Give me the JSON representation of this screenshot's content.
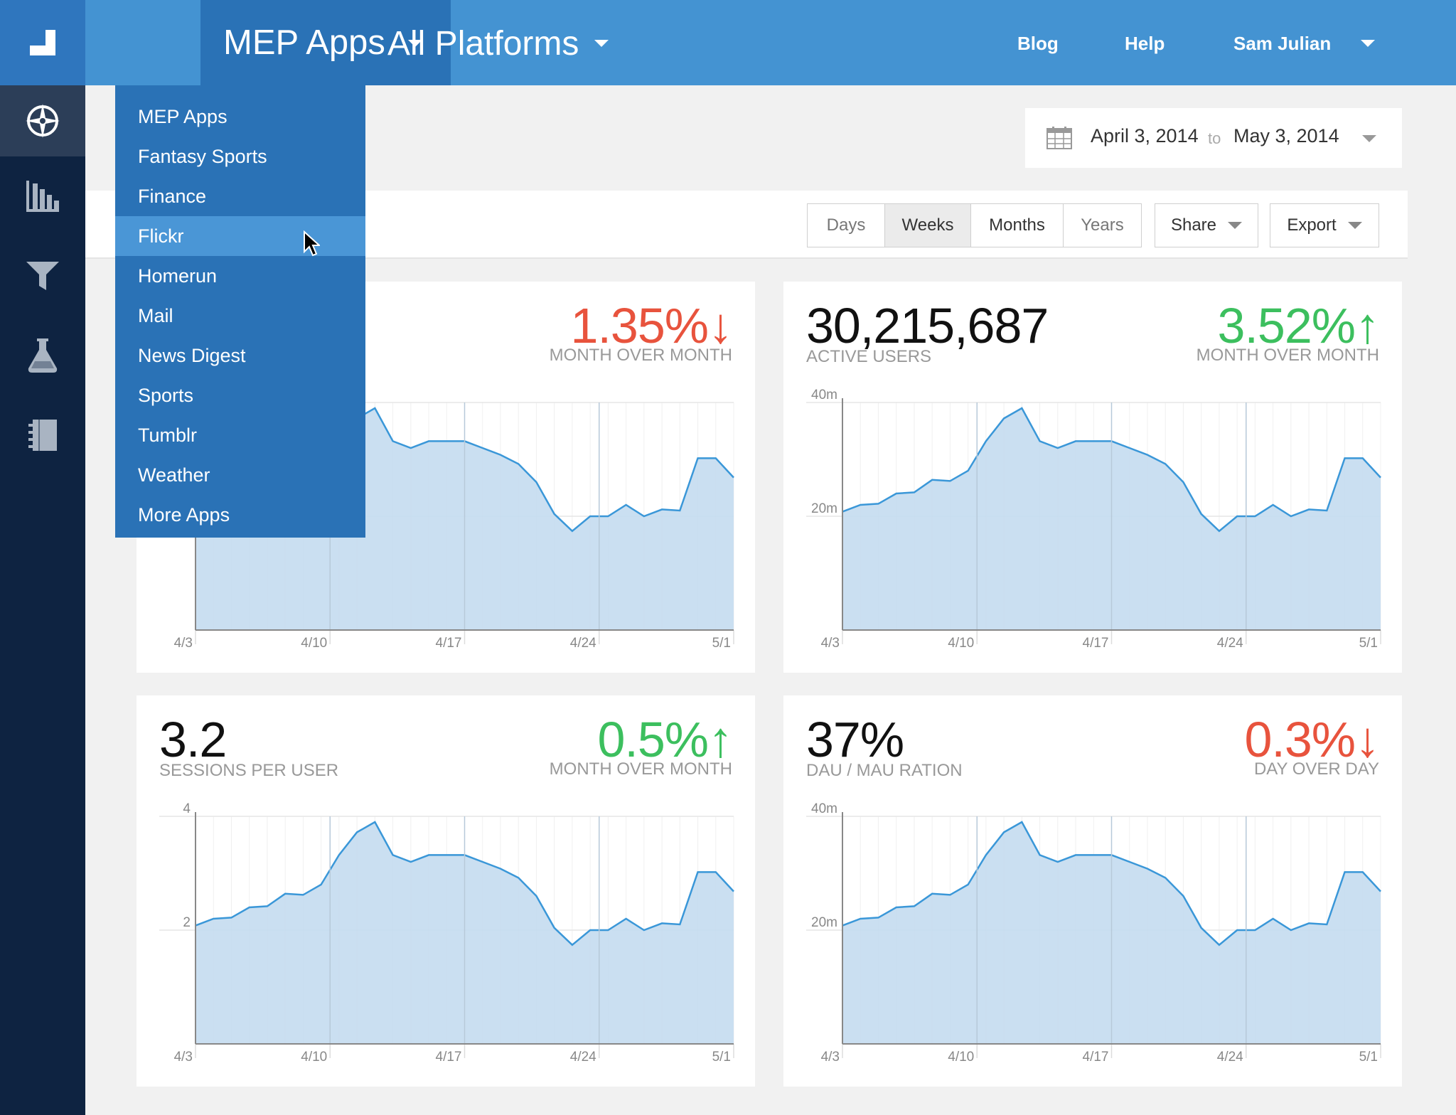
{
  "header": {
    "app_selector": "MEP Apps",
    "platform_selector": "All Platforms",
    "nav": {
      "blog": "Blog",
      "help": "Help",
      "user": "Sam Julian"
    }
  },
  "sidebar": {
    "items": [
      {
        "icon": "compass-icon",
        "active": true
      },
      {
        "icon": "bar-chart-icon"
      },
      {
        "icon": "filter-icon"
      },
      {
        "icon": "flask-icon"
      },
      {
        "icon": "notebook-icon"
      }
    ]
  },
  "app_dropdown": {
    "items": [
      "MEP Apps",
      "Fantasy Sports",
      "Finance",
      "Flickr",
      "Homerun",
      "Mail",
      "News Digest",
      "Sports",
      "Tumblr",
      "Weather",
      "More Apps"
    ],
    "hovered": "Flickr"
  },
  "date_range": {
    "start": "April 3, 2014",
    "to": "to",
    "end": "May 3, 2014"
  },
  "toolbar": {
    "granularity": [
      "Days",
      "Weeks",
      "Months",
      "Years"
    ],
    "selected": "Weeks",
    "share_label": "Share",
    "export_label": "Export"
  },
  "cards": [
    {
      "big": "",
      "sub": "",
      "delta": "1.35%",
      "delta_arrow": "↓",
      "delta_dir": "down",
      "delta_label": "MONTH OVER MONTH",
      "y_ticks": []
    },
    {
      "big": "30,215,687",
      "sub": "ACTIVE USERS",
      "delta": "3.52%",
      "delta_arrow": "↑",
      "delta_dir": "up",
      "delta_label": "MONTH OVER MONTH",
      "y_ticks": [
        "40m",
        "20m"
      ]
    },
    {
      "big": "3.2",
      "sub": "SESSIONS PER USER",
      "delta": "0.5%",
      "delta_arrow": "↑",
      "delta_dir": "up",
      "delta_label": "MONTH OVER MONTH",
      "y_ticks": [
        "4",
        "2"
      ]
    },
    {
      "big": "37%",
      "sub": "DAU / MAU RATION",
      "delta": "0.3%",
      "delta_arrow": "↓",
      "delta_dir": "down",
      "delta_label": "DAY OVER DAY",
      "y_ticks": [
        "40m",
        "20m"
      ]
    }
  ],
  "chart_data": {
    "type": "area",
    "x_labels": [
      "4/3",
      "4/10",
      "4/17",
      "4/24",
      "5/1"
    ],
    "series_shape": [
      0.52,
      0.55,
      0.555,
      0.6,
      0.605,
      0.66,
      0.655,
      0.7,
      0.83,
      0.93,
      0.975,
      0.83,
      0.8,
      0.83,
      0.83,
      0.83,
      0.8,
      0.77,
      0.73,
      0.65,
      0.51,
      0.435,
      0.5,
      0.5,
      0.55,
      0.5,
      0.53,
      0.525,
      0.755,
      0.755,
      0.67
    ],
    "ylim": [
      0,
      1
    ],
    "colors": {
      "line": "#3a97d8",
      "fill": "#c4dcf0"
    }
  }
}
